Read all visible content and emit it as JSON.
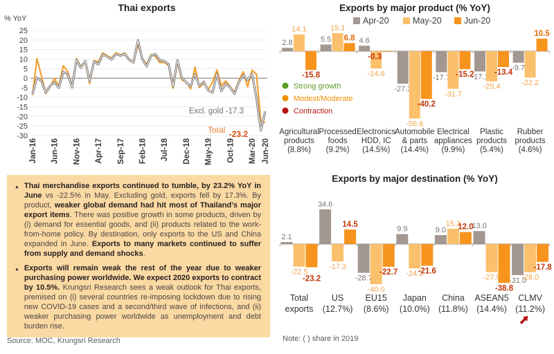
{
  "palette": {
    "apr_bar": "#A39792",
    "may_bar": "#FBC06C",
    "jun_bar": "#F7941E",
    "apr_label": "#7B7470",
    "may_label": "#F0A44C",
    "box_bg": "#FBD9A3",
    "dark_red": "#B31312",
    "axis_gray": "#ACA39B"
  },
  "chart_data": [
    {
      "type": "line",
      "title": "Thai exports",
      "ylabel": "% YoY",
      "ylim": [
        -30,
        25
      ],
      "ytick_step": 5,
      "x_axis_ticks": [
        "Jan-16",
        "Jun-16",
        "Nov-16",
        "Apr-17",
        "Sep-17",
        "Feb-18",
        "Jul-18",
        "Dec-18",
        "May-19",
        "Oct-19",
        "Mar-20",
        "Jun-20"
      ],
      "x_months": [
        "Jan-16",
        "Feb-16",
        "Mar-16",
        "Apr-16",
        "May-16",
        "Jun-16",
        "Jul-16",
        "Aug-16",
        "Sep-16",
        "Oct-16",
        "Nov-16",
        "Dec-16",
        "Jan-17",
        "Feb-17",
        "Mar-17",
        "Apr-17",
        "May-17",
        "Jun-17",
        "Jul-17",
        "Aug-17",
        "Sep-17",
        "Oct-17",
        "Nov-17",
        "Dec-17",
        "Jan-18",
        "Feb-18",
        "Mar-18",
        "Apr-18",
        "May-18",
        "Jun-18",
        "Jul-18",
        "Aug-18",
        "Sep-18",
        "Oct-18",
        "Nov-18",
        "Dec-18",
        "Jan-19",
        "Feb-19",
        "Mar-19",
        "Apr-19",
        "May-19",
        "Jun-19",
        "Jul-19",
        "Aug-19",
        "Sep-19",
        "Oct-19",
        "Nov-19",
        "Dec-19",
        "Jan-20",
        "Feb-20",
        "Mar-20",
        "Apr-20",
        "May-20",
        "Jun-20"
      ],
      "series": [
        {
          "name": "Total",
          "color": "#F2A438",
          "values": [
            -8.9,
            10.3,
            1.3,
            -8.0,
            -4.4,
            -0.1,
            -4.4,
            6.5,
            3.4,
            -4.2,
            10.2,
            6.2,
            8.8,
            -2.8,
            9.2,
            8.5,
            13.2,
            11.7,
            10.5,
            13.2,
            12.2,
            13.1,
            9.9,
            8.6,
            17.6,
            10.3,
            7.1,
            12.3,
            11.4,
            8.2,
            8.3,
            6.7,
            -5.2,
            8.7,
            -0.9,
            -1.7,
            -5.7,
            5.9,
            -4.9,
            -2.6,
            -5.8,
            -2.1,
            4.3,
            -4.0,
            -1.4,
            -4.5,
            -7.4,
            -1.3,
            3.4,
            -4.5,
            4.2,
            2.1,
            -22.5,
            -23.2
          ]
        },
        {
          "name": "Excl. gold",
          "color": "#6E6A67",
          "values": [
            -8.3,
            0.3,
            -1.5,
            -7.5,
            -4.0,
            -2.2,
            -5.0,
            3.2,
            2.0,
            -4.8,
            9.6,
            5.5,
            9.0,
            -1.5,
            8.8,
            7.2,
            12.4,
            11.2,
            9.8,
            12.5,
            11.8,
            12.6,
            9.6,
            8.2,
            19.8,
            10.0,
            6.2,
            11.8,
            12.6,
            9.4,
            8.9,
            7.3,
            -4.2,
            9.4,
            0.3,
            -2.3,
            -4.2,
            2.0,
            -4.0,
            -1.8,
            -6.4,
            -7.6,
            2.3,
            -6.8,
            -2.9,
            -4.8,
            -8.2,
            -2.0,
            1.6,
            -1.0,
            2.2,
            -10.3,
            -27.4,
            -17.3
          ]
        }
      ],
      "annotations": {
        "excl_gold": {
          "text": "Excl. gold -17.3",
          "color": "#6F6F6F"
        },
        "total": {
          "label": "Total",
          "label_color": "#ED7D31",
          "value": "-23.2",
          "value_color": "#D9480F"
        }
      }
    },
    {
      "type": "bar",
      "title": "Exports by major product (% YoY)",
      "legend": [
        {
          "name": "Apr-20",
          "color": "#A39792"
        },
        {
          "name": "May-20",
          "color": "#FBC06C"
        },
        {
          "name": "Jun-20",
          "color": "#F7941E"
        }
      ],
      "categories": [
        {
          "label_lines": [
            "Agricultural",
            "products"
          ],
          "share": "(8.8%)"
        },
        {
          "label_lines": [
            "Processed",
            "foods"
          ],
          "share": "(9.2%)"
        },
        {
          "label_lines": [
            "Electronics",
            "HDD, IC"
          ],
          "share": "(14.5%)"
        },
        {
          "label_lines": [
            "Automobile",
            "& parts"
          ],
          "share": "(14.4%)"
        },
        {
          "label_lines": [
            "Electrical",
            "appliances"
          ],
          "share": "(9.9%)"
        },
        {
          "label_lines": [
            "Plastic",
            "products"
          ],
          "share": "(5.4%)"
        },
        {
          "label_lines": [
            "Rubber",
            "products"
          ],
          "share": "(4.6%)"
        }
      ],
      "series": [
        {
          "name": "Apr-20",
          "color": "#A39792",
          "values": [
            2.8,
            5.5,
            4.6,
            -27.3,
            -17.7,
            -17.1,
            -9.7
          ]
        },
        {
          "name": "May-20",
          "color": "#FBC06C",
          "values": [
            14.1,
            15.1,
            -14.6,
            -56.6,
            -31.7,
            -25.4,
            -22.2
          ]
        },
        {
          "name": "Jun-20",
          "color": "#F7941E",
          "values": [
            -15.8,
            6.8,
            -0.3,
            -40.2,
            -15.2,
            -13.4,
            10.5
          ]
        }
      ],
      "label_colors": {
        "Apr-20": "#7B7470",
        "May-20": "#F0A44C",
        "Jun-20_pos": "#E06A0A",
        "Jun-20_neg": "#C23409"
      },
      "status_legend": [
        {
          "label": "Strong growth",
          "color": "#5B9B25"
        },
        {
          "label": "Modest/Moderate",
          "color": "#F09000"
        },
        {
          "label": "Contraction",
          "color": "#B31312"
        }
      ]
    },
    {
      "type": "bar",
      "title": "Exports by major destination (% YoY)",
      "categories": [
        {
          "label_lines": [
            "Total",
            "exports"
          ],
          "share": ""
        },
        {
          "label_lines": [
            "US"
          ],
          "share": "(12.7%)"
        },
        {
          "label_lines": [
            "EU15"
          ],
          "share": "(8.6%)"
        },
        {
          "label_lines": [
            "Japan"
          ],
          "share": "(10.0%)"
        },
        {
          "label_lines": [
            "China"
          ],
          "share": "(11.8%)"
        },
        {
          "label_lines": [
            "ASEAN5"
          ],
          "share": "(14.4%)"
        },
        {
          "label_lines": [
            "CLMV"
          ],
          "share": "(11.2%)",
          "marker": "red-up-arrow"
        }
      ],
      "series": [
        {
          "name": "Apr-20",
          "color": "#A39792",
          "values": [
            2.1,
            34.6,
            -28.7,
            9.9,
            9.0,
            13.0,
            -31.0
          ]
        },
        {
          "name": "May-20",
          "color": "#FBC06C",
          "values": [
            -22.5,
            -17.3,
            -40.0,
            -24.2,
            15.3,
            -27.9,
            -28.0
          ]
        },
        {
          "name": "Jun-20",
          "color": "#F7941E",
          "values": [
            -23.2,
            14.5,
            -22.7,
            -21.6,
            12.0,
            -38.8,
            -17.8
          ]
        }
      ],
      "label_colors": {
        "Apr-20": "#7B7470",
        "May-20": "#F0A44C",
        "Jun-20_pos": "#C23409",
        "Jun-20_neg": "#C23409"
      }
    }
  ],
  "commentary": {
    "bullets": [
      {
        "segments": [
          {
            "text": "Thai merchandise exports continued to tumble, by 23.2% YoY in June",
            "bold": true
          },
          {
            "text": " vs -22.5% in May. Excluding gold, exports fell by 17.3%. By product, ",
            "bold": false
          },
          {
            "text": "weaker global demand had hit most of Thailand’s major export items",
            "bold": true
          },
          {
            "text": ". There was positive growth in some products, driven by (i) demand for essential goods, and (ii) products related to the work-from-home policy. By destination, only exports to the US and China expanded in June. ",
            "bold": false
          },
          {
            "text": "Exports to many markets continued to suffer from supply and demand shocks",
            "bold": true
          },
          {
            "text": ".",
            "bold": false
          }
        ]
      },
      {
        "segments": [
          {
            "text": "Exports will remain weak the rest of the year due to weaker purchasing power worldwide. We expect 2020 exports to contract by 10.5%.",
            "bold": true
          },
          {
            "text": " Krungsri Research sees a weak outlook for Thai exports, premised on (i) several countries re-imposing lockdown due to rising new COVID-19 cases and a second/third wave of infections, and (ii) weaker purchasing power worldwide as unemployment and debt burden rise.",
            "bold": false
          }
        ]
      }
    ]
  },
  "source": "Source: MOC, Krungsri Research",
  "note": "Note: (  ) share in 2019"
}
